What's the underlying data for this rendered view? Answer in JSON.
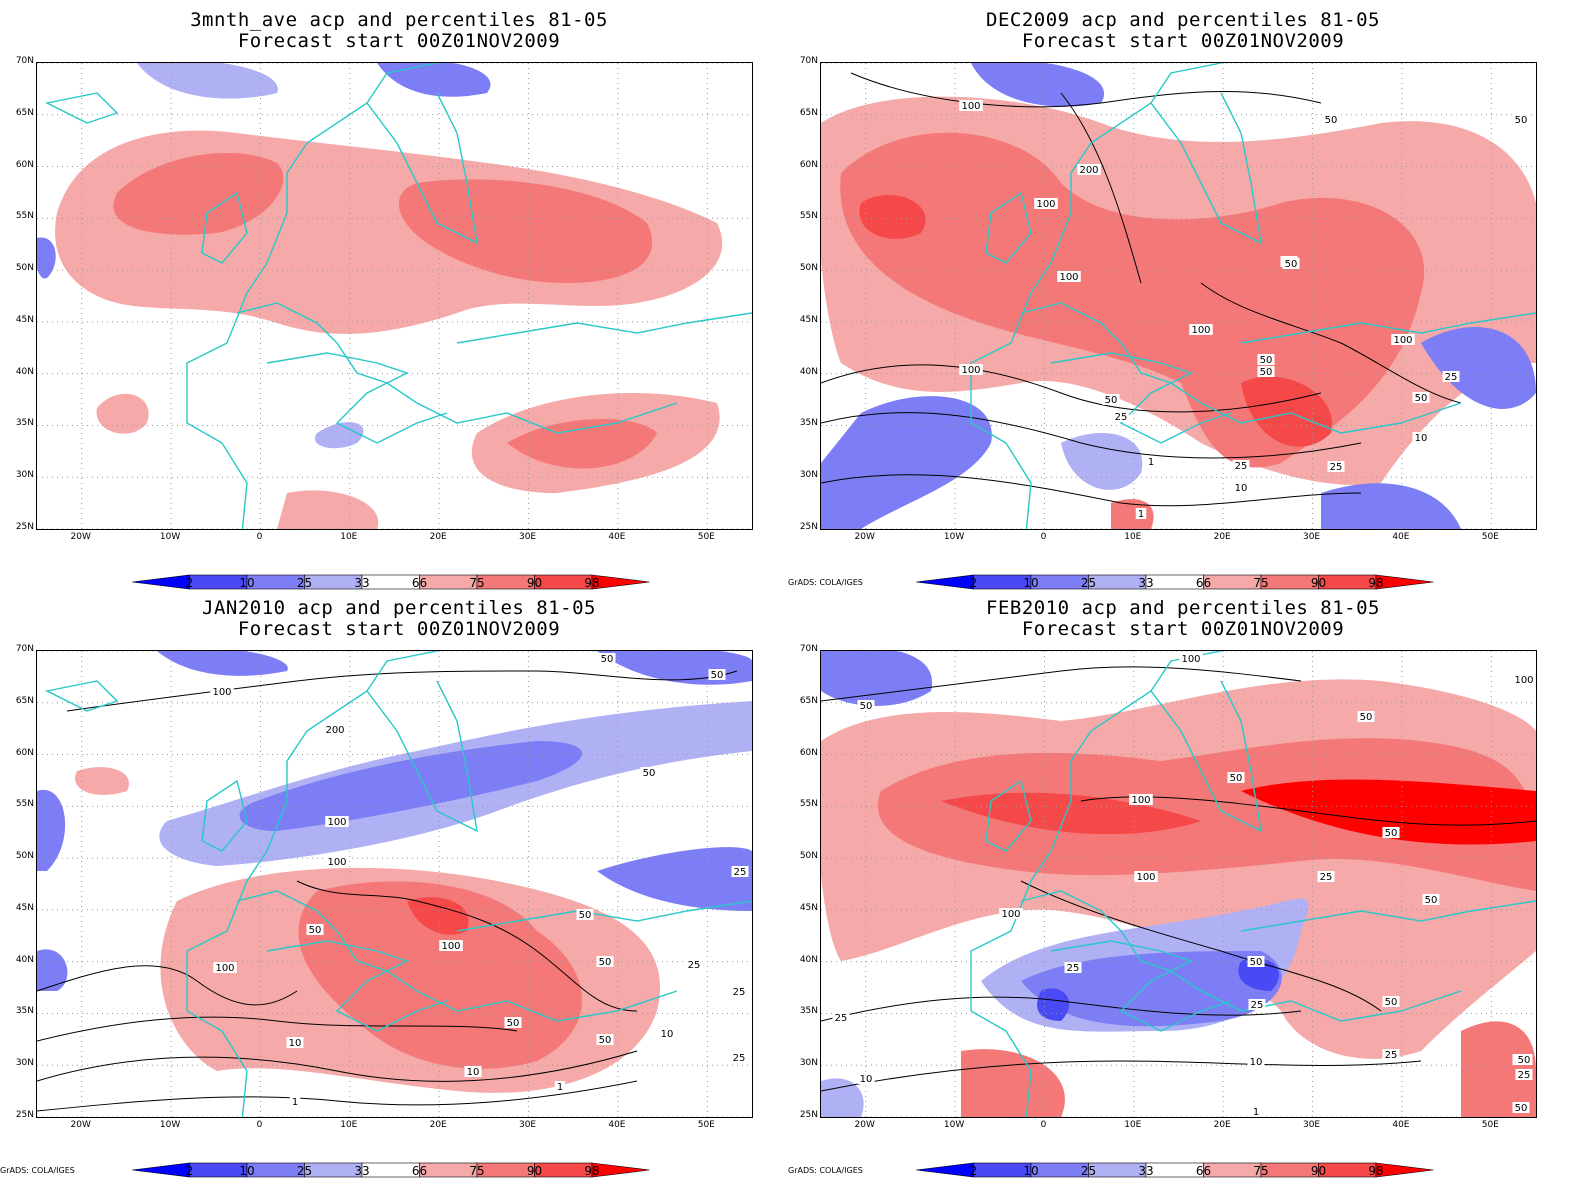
{
  "panels": [
    {
      "title1": "3mnth_ave acp and percentiles 81-05",
      "title2": "Forecast start 00Z01NOV2009",
      "credit": "",
      "contour_labels": []
    },
    {
      "title1": "DEC2009 acp and percentiles 81-05",
      "title2": "Forecast start 00Z01NOV2009",
      "credit": "GrADS: COLA/IGES",
      "contour_labels": [
        "100",
        "50",
        "50",
        "200",
        "100",
        "50",
        "100",
        "50",
        "100",
        "100",
        "50",
        "50",
        "25",
        "100",
        "50",
        "25",
        "50",
        "10",
        "10",
        "25",
        "1",
        "1",
        "25"
      ]
    },
    {
      "title1": "JAN2010 acp and percentiles 81-05",
      "title2": "Forecast start 00Z01NOV2009",
      "credit": "GrADS: COLA/IGES",
      "contour_labels": [
        "100",
        "50",
        "50",
        "200",
        "50",
        "100",
        "100",
        "25",
        "50",
        "100",
        "100",
        "50",
        "50",
        "25",
        "25",
        "10",
        "50",
        "10",
        "10",
        "1",
        "1",
        "50",
        "25"
      ]
    },
    {
      "title1": "FEB2010 acp and percentiles 81-05",
      "title2": "Forecast start 00Z01NOV2009",
      "credit": "GrADS: COLA/IGES",
      "contour_labels": [
        "100",
        "100",
        "50",
        "50",
        "50",
        "100",
        "50",
        "100",
        "25",
        "100",
        "50",
        "25",
        "50",
        "25",
        "50",
        "10",
        "10",
        "1",
        "25",
        "50",
        "50",
        "50",
        "25",
        "25"
      ]
    }
  ],
  "lat_labels": [
    "70N",
    "65N",
    "60N",
    "55N",
    "50N",
    "45N",
    "40N",
    "35N",
    "30N",
    "25N"
  ],
  "lon_labels": [
    "20W",
    "10W",
    "0",
    "10E",
    "20E",
    "30E",
    "40E",
    "50E"
  ],
  "colorbar": {
    "labels": [
      "2",
      "10",
      "25",
      "33",
      "66",
      "75",
      "90",
      "98"
    ],
    "colors": [
      "#0000ff",
      "#4a4af5",
      "#7d7df5",
      "#b0b0f5",
      "#ffffff",
      "#f5a9a9",
      "#f57878",
      "#f54848",
      "#ff0000"
    ]
  },
  "colors": {
    "coast": "#28c8c8",
    "contour": "#000000",
    "grid": "#9a9a9a"
  }
}
